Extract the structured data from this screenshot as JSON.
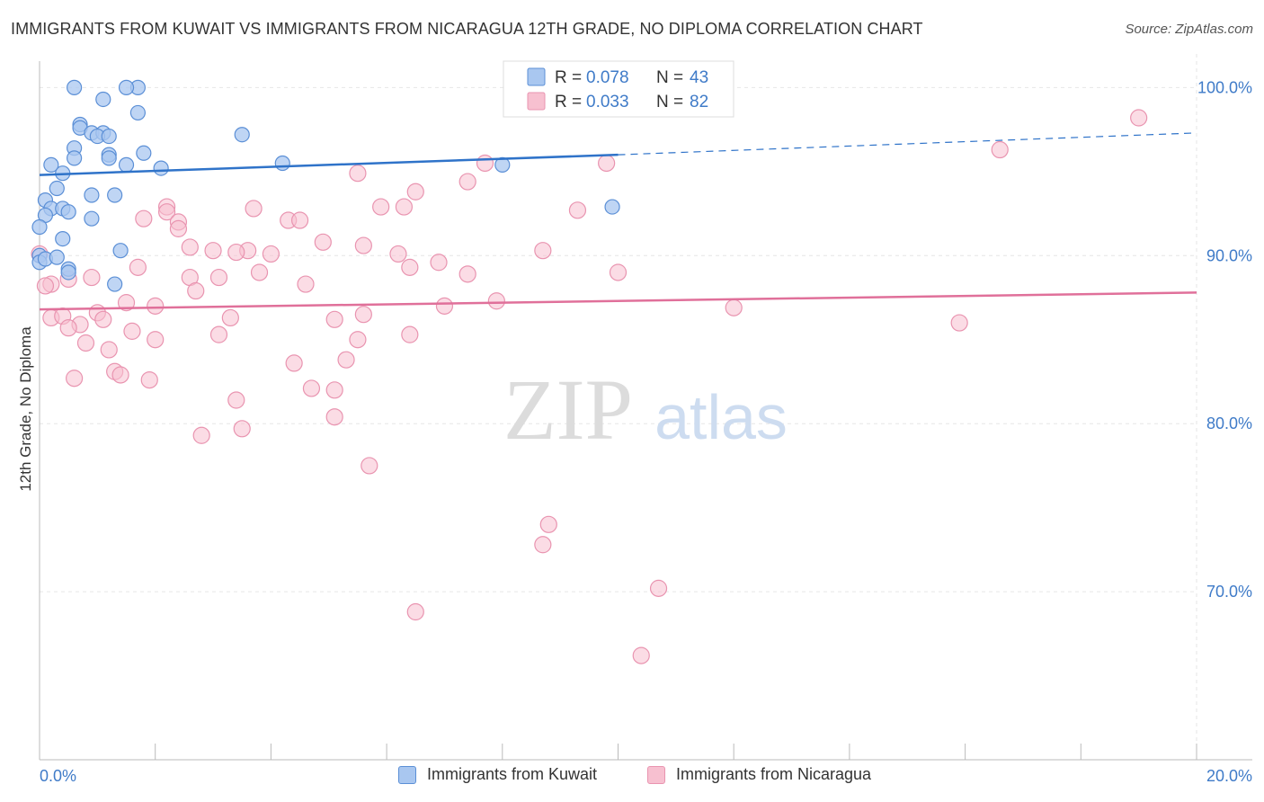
{
  "title": "IMMIGRANTS FROM KUWAIT VS IMMIGRANTS FROM NICARAGUA 12TH GRADE, NO DIPLOMA CORRELATION CHART",
  "source": "Source: ZipAtlas.com",
  "watermark": {
    "zip": "ZIP",
    "atlas": "atlas"
  },
  "colors": {
    "kuwait_fill": "#a9c7f0",
    "kuwait_stroke": "#5b8fd6",
    "kuwait_line": "#2f73c9",
    "nicaragua_fill": "#f7c0d0",
    "nicaragua_stroke": "#e994b0",
    "nicaragua_line": "#e0709a",
    "axis_text": "#3f7bc8",
    "grid": "#e6e6e6"
  },
  "chart_data": {
    "type": "scatter",
    "title": "IMMIGRANTS FROM KUWAIT VS IMMIGRANTS FROM NICARAGUA 12TH GRADE, NO DIPLOMA CORRELATION CHART",
    "xlabel": "",
    "ylabel": "12th Grade, No Diploma",
    "xlim": [
      0,
      20
    ],
    "ylim": [
      60,
      102
    ],
    "x_tick_labels": [
      "0.0%",
      "20.0%"
    ],
    "y_ticks": [
      70,
      80,
      90,
      100
    ],
    "y_tick_labels": [
      "70.0%",
      "80.0%",
      "90.0%",
      "100.0%"
    ],
    "grid": true,
    "legend_placement": "bottom",
    "stats_box": [
      {
        "r_label": "R =",
        "r_value": "0.078",
        "n_label": "N =",
        "n_value": "43"
      },
      {
        "r_label": "R =",
        "r_value": "0.033",
        "n_label": "N =",
        "n_value": "82"
      }
    ],
    "series": [
      {
        "name": "Immigrants from Kuwait",
        "trend": {
          "x0": 0,
          "y0": 94.8,
          "x1": 10,
          "y1": 96.0,
          "dashed_to_x": 20,
          "dashed_to_y": 97.3
        },
        "points": [
          [
            0.6,
            100
          ],
          [
            1.7,
            100
          ],
          [
            1.5,
            100
          ],
          [
            1.1,
            99.3
          ],
          [
            1.7,
            98.5
          ],
          [
            0.7,
            97.8
          ],
          [
            0.7,
            97.6
          ],
          [
            0.9,
            97.3
          ],
          [
            1.1,
            97.3
          ],
          [
            1.0,
            97.1
          ],
          [
            1.2,
            97.1
          ],
          [
            3.5,
            97.2
          ],
          [
            0.6,
            96.4
          ],
          [
            1.2,
            96.0
          ],
          [
            1.8,
            96.1
          ],
          [
            0.6,
            95.8
          ],
          [
            1.2,
            95.8
          ],
          [
            0.2,
            95.4
          ],
          [
            1.5,
            95.4
          ],
          [
            2.1,
            95.2
          ],
          [
            4.2,
            95.5
          ],
          [
            8.0,
            95.4
          ],
          [
            0.4,
            94.9
          ],
          [
            0.3,
            94.0
          ],
          [
            0.9,
            93.6
          ],
          [
            1.3,
            93.6
          ],
          [
            0.1,
            93.3
          ],
          [
            0.2,
            92.8
          ],
          [
            0.4,
            92.8
          ],
          [
            0.5,
            92.6
          ],
          [
            0.1,
            92.4
          ],
          [
            0.9,
            92.2
          ],
          [
            9.9,
            92.9
          ],
          [
            0.0,
            91.7
          ],
          [
            0.4,
            91.0
          ],
          [
            1.4,
            90.3
          ],
          [
            0.0,
            90.0
          ],
          [
            0.5,
            89.2
          ],
          [
            0.5,
            89.0
          ],
          [
            1.3,
            88.3
          ],
          [
            0.0,
            89.6
          ],
          [
            0.1,
            89.8
          ],
          [
            0.3,
            89.9
          ]
        ]
      },
      {
        "name": "Immigrants from Nicaragua",
        "trend": {
          "x0": 0,
          "y0": 86.8,
          "x1": 20,
          "y1": 87.8
        },
        "points": [
          [
            19.0,
            98.2
          ],
          [
            16.6,
            96.3
          ],
          [
            7.7,
            95.5
          ],
          [
            9.8,
            95.5
          ],
          [
            5.5,
            94.9
          ],
          [
            7.4,
            94.4
          ],
          [
            6.5,
            93.8
          ],
          [
            2.2,
            92.9
          ],
          [
            3.7,
            92.8
          ],
          [
            5.9,
            92.9
          ],
          [
            6.3,
            92.9
          ],
          [
            9.3,
            92.7
          ],
          [
            2.2,
            92.6
          ],
          [
            1.8,
            92.2
          ],
          [
            4.3,
            92.1
          ],
          [
            4.5,
            92.1
          ],
          [
            2.4,
            92.0
          ],
          [
            2.4,
            91.6
          ],
          [
            4.9,
            90.8
          ],
          [
            5.6,
            90.6
          ],
          [
            2.6,
            90.5
          ],
          [
            3.0,
            90.3
          ],
          [
            3.6,
            90.3
          ],
          [
            8.7,
            90.3
          ],
          [
            3.4,
            90.2
          ],
          [
            4.0,
            90.1
          ],
          [
            6.2,
            90.1
          ],
          [
            6.9,
            89.6
          ],
          [
            1.7,
            89.3
          ],
          [
            6.4,
            89.3
          ],
          [
            3.8,
            89.0
          ],
          [
            7.4,
            88.9
          ],
          [
            10.0,
            89.0
          ],
          [
            0.2,
            88.3
          ],
          [
            0.9,
            88.7
          ],
          [
            2.6,
            88.7
          ],
          [
            3.1,
            88.7
          ],
          [
            0.5,
            88.6
          ],
          [
            4.6,
            88.3
          ],
          [
            2.7,
            87.9
          ],
          [
            7.9,
            87.3
          ],
          [
            1.5,
            87.2
          ],
          [
            2.0,
            87.0
          ],
          [
            7.0,
            87.0
          ],
          [
            12.0,
            86.9
          ],
          [
            1.0,
            86.6
          ],
          [
            0.2,
            86.3
          ],
          [
            0.4,
            86.4
          ],
          [
            3.3,
            86.3
          ],
          [
            1.1,
            86.2
          ],
          [
            5.1,
            86.2
          ],
          [
            5.6,
            86.5
          ],
          [
            0.7,
            85.9
          ],
          [
            0.5,
            85.7
          ],
          [
            1.6,
            85.5
          ],
          [
            3.1,
            85.3
          ],
          [
            6.4,
            85.3
          ],
          [
            2.0,
            85.0
          ],
          [
            5.5,
            85.0
          ],
          [
            0.8,
            84.8
          ],
          [
            1.2,
            84.4
          ],
          [
            5.3,
            83.8
          ],
          [
            4.4,
            83.6
          ],
          [
            1.3,
            83.1
          ],
          [
            1.4,
            82.9
          ],
          [
            0.6,
            82.7
          ],
          [
            1.9,
            82.6
          ],
          [
            4.7,
            82.1
          ],
          [
            5.1,
            82.0
          ],
          [
            15.9,
            86.0
          ],
          [
            3.4,
            81.4
          ],
          [
            5.1,
            80.4
          ],
          [
            3.5,
            79.7
          ],
          [
            2.8,
            79.3
          ],
          [
            5.7,
            77.5
          ],
          [
            8.8,
            74.0
          ],
          [
            8.7,
            72.8
          ],
          [
            10.7,
            70.2
          ],
          [
            6.5,
            68.8
          ],
          [
            10.4,
            66.2
          ],
          [
            0.0,
            90.1
          ],
          [
            0.1,
            88.2
          ]
        ]
      }
    ]
  }
}
